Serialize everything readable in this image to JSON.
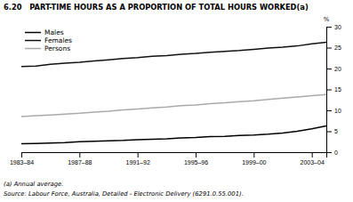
{
  "chart_data": {
    "type": "line",
    "title": "6.20   PART-TIME HOURS AS A PROPORTION OF TOTAL HOURS WORKED(a)",
    "y_label": "%",
    "annotations": [
      "(a) Annual average.",
      "Source: Labour Force, Australia, Detailed - Electronic Delivery (6291.0.55.001)."
    ],
    "x": [
      1983,
      1984,
      1985,
      1986,
      1987,
      1988,
      1989,
      1990,
      1991,
      1992,
      1993,
      1994,
      1995,
      1996,
      1997,
      1998,
      1999,
      2000,
      2001,
      2002,
      2003,
      2004
    ],
    "series": [
      {
        "name": "Males",
        "color": "#000000",
        "values": [
          2.0,
          2.1,
          2.2,
          2.3,
          2.5,
          2.6,
          2.7,
          2.8,
          3.0,
          3.1,
          3.2,
          3.4,
          3.5,
          3.7,
          3.8,
          4.0,
          4.1,
          4.3,
          4.6,
          5.0,
          5.6,
          6.3
        ]
      },
      {
        "name": "Females",
        "color": "#111111",
        "values": [
          20.5,
          20.6,
          21.0,
          21.3,
          21.5,
          21.8,
          22.1,
          22.4,
          22.6,
          22.9,
          23.1,
          23.4,
          23.6,
          23.9,
          24.1,
          24.3,
          24.6,
          24.9,
          25.1,
          25.4,
          25.9,
          26.3
        ]
      },
      {
        "name": "Persons",
        "color": "#aaaaaa",
        "values": [
          8.5,
          8.7,
          8.9,
          9.1,
          9.3,
          9.6,
          9.8,
          10.1,
          10.3,
          10.6,
          10.8,
          11.1,
          11.3,
          11.6,
          11.8,
          12.1,
          12.3,
          12.6,
          12.9,
          13.2,
          13.5,
          13.8
        ]
      }
    ],
    "xlim": [
      1983,
      2004
    ],
    "xticks": [
      {
        "value": 1983,
        "label": "1983–84"
      },
      {
        "value": 1987,
        "label": "1987–88"
      },
      {
        "value": 1991,
        "label": "1991–92"
      },
      {
        "value": 1995,
        "label": "1995–96"
      },
      {
        "value": 1999,
        "label": "1999–00"
      },
      {
        "value": 2003,
        "label": "2003–04"
      }
    ],
    "ylim": [
      0,
      30
    ],
    "yticks": [
      0,
      5,
      10,
      15,
      20,
      25,
      30
    ],
    "grid": false,
    "legend": "upper left"
  }
}
